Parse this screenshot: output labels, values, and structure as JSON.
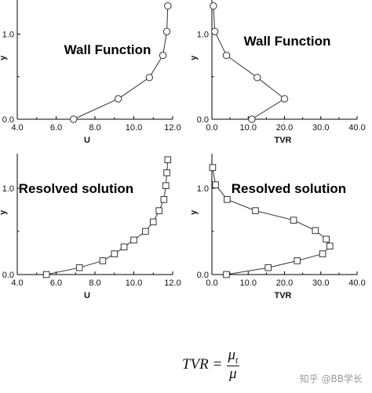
{
  "chart_data": [
    {
      "type": "line",
      "title": "Wall Function",
      "xlabel": "U",
      "ylabel": "y",
      "xlim": [
        4.0,
        12.0
      ],
      "ylim": [
        0.0,
        1.4
      ],
      "xticks": [
        "4.0",
        "6.0",
        "8.0",
        "10.0",
        "12.0"
      ],
      "yticks": [
        "0.0",
        "1.0"
      ],
      "marker": "circle",
      "series": [
        {
          "x": [
            6.9,
            9.2,
            10.8,
            11.5,
            11.7,
            11.75
          ],
          "y": [
            0.0,
            0.24,
            0.49,
            0.75,
            1.03,
            1.33
          ]
        }
      ]
    },
    {
      "type": "line",
      "title": "Wall Function",
      "xlabel": "TVR",
      "ylabel": "y",
      "xlim": [
        0.0,
        40.0
      ],
      "ylim": [
        0.0,
        1.4
      ],
      "xticks": [
        "0.0",
        "10.0",
        "20.0",
        "30.0",
        "40.0"
      ],
      "yticks": [
        "0.0",
        "1.0"
      ],
      "marker": "circle",
      "series": [
        {
          "x": [
            11.0,
            20.0,
            12.5,
            4.0,
            0.8,
            0.4
          ],
          "y": [
            0.0,
            0.24,
            0.49,
            0.75,
            1.03,
            1.33
          ]
        }
      ]
    },
    {
      "type": "line",
      "title": "Resolved solution",
      "xlabel": "U",
      "ylabel": "y",
      "xlim": [
        4.0,
        12.0
      ],
      "ylim": [
        0.0,
        1.4
      ],
      "xticks": [
        "4.0",
        "6.0",
        "8.0",
        "10.0",
        "12.0"
      ],
      "yticks": [
        "0.0",
        "1.0"
      ],
      "marker": "square",
      "series": [
        {
          "x": [
            5.5,
            7.2,
            8.4,
            9.0,
            9.5,
            10.0,
            10.6,
            11.0,
            11.3,
            11.55,
            11.65,
            11.7,
            11.75
          ],
          "y": [
            0.0,
            0.08,
            0.16,
            0.24,
            0.32,
            0.4,
            0.5,
            0.61,
            0.74,
            0.87,
            1.03,
            1.18,
            1.33
          ]
        }
      ]
    },
    {
      "type": "line",
      "title": "Resolved solution",
      "xlabel": "TVR",
      "ylabel": "y",
      "xlim": [
        0.0,
        40.0
      ],
      "ylim": [
        0.0,
        1.4
      ],
      "xticks": [
        "0.0",
        "10.0",
        "20.0",
        "30.0",
        "40.0"
      ],
      "yticks": [
        "0.0",
        "1.0"
      ],
      "marker": "square",
      "series": [
        {
          "x": [
            4.0,
            15.5,
            23.5,
            30.5,
            32.5,
            31.5,
            28.5,
            22.5,
            12.0,
            4.2,
            1.0,
            0.2
          ],
          "y": [
            0.0,
            0.08,
            0.16,
            0.24,
            0.33,
            0.41,
            0.51,
            0.63,
            0.74,
            0.87,
            1.04,
            1.24
          ]
        }
      ]
    }
  ],
  "formula": {
    "lhs": "TVR",
    "eq": "=",
    "num": "μ",
    "num_sub": "t",
    "den": "μ"
  },
  "watermark": "知乎 @BB学长"
}
